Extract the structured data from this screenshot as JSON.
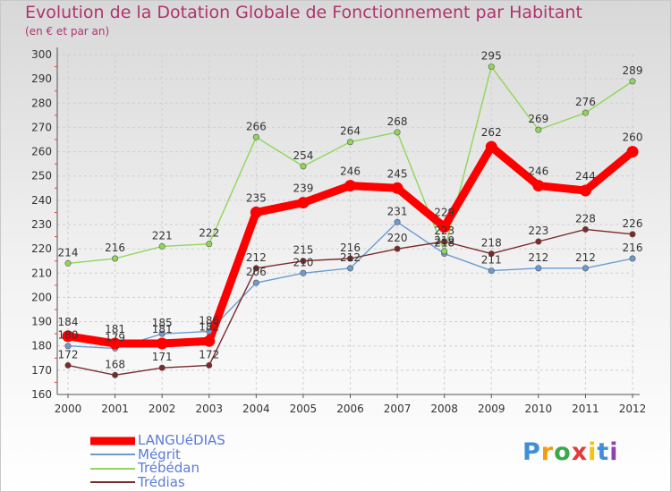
{
  "chart_data": {
    "type": "line",
    "title": "Evolution de la Dotation Globale de Fonctionnement par Habitant",
    "subtitle": "(en € et par an)",
    "xlabel": "",
    "ylabel": "",
    "categories": [
      "2000",
      "2001",
      "2002",
      "2003",
      "2004",
      "2005",
      "2006",
      "2007",
      "2008",
      "2009",
      "2010",
      "2011",
      "2012"
    ],
    "ylim": [
      160,
      300
    ],
    "yticks": [
      160,
      170,
      180,
      190,
      200,
      210,
      220,
      230,
      240,
      250,
      260,
      270,
      280,
      290,
      300
    ],
    "grid": true,
    "series": [
      {
        "name": "LANGUéDIAS",
        "color": "#ff0000",
        "values": [
          184,
          181,
          181,
          182,
          235,
          239,
          246,
          245,
          229,
          262,
          246,
          244,
          260
        ]
      },
      {
        "name": "Mégrit",
        "color": "#6b9bd1",
        "values": [
          180,
          179,
          185,
          186,
          206,
          210,
          212,
          231,
          218,
          211,
          212,
          212,
          216
        ]
      },
      {
        "name": "Trébédan",
        "color": "#8fd65a",
        "values": [
          214,
          216,
          221,
          222,
          266,
          254,
          264,
          268,
          219,
          295,
          269,
          276,
          289
        ]
      },
      {
        "name": "Trédias",
        "color": "#7a2a2a",
        "values": [
          172,
          168,
          171,
          172,
          212,
          215,
          216,
          220,
          223,
          218,
          223,
          228,
          226
        ]
      }
    ]
  },
  "legend": {
    "items": [
      {
        "label": "LANGUéDIAS",
        "color": "#ff0000"
      },
      {
        "label": "Mégrit",
        "color": "#6b9bd1"
      },
      {
        "label": "Trébédan",
        "color": "#8fd65a"
      },
      {
        "label": "Trédias",
        "color": "#7a2a2a"
      }
    ]
  },
  "logo": {
    "letters": [
      "P",
      "r",
      "o",
      "x",
      "i",
      "t",
      "i"
    ],
    "colors": [
      "#3f8fd8",
      "#f39c12",
      "#3aa84e",
      "#e23b3b",
      "#f1c40f",
      "#3f8fd8",
      "#8e44ad"
    ]
  }
}
